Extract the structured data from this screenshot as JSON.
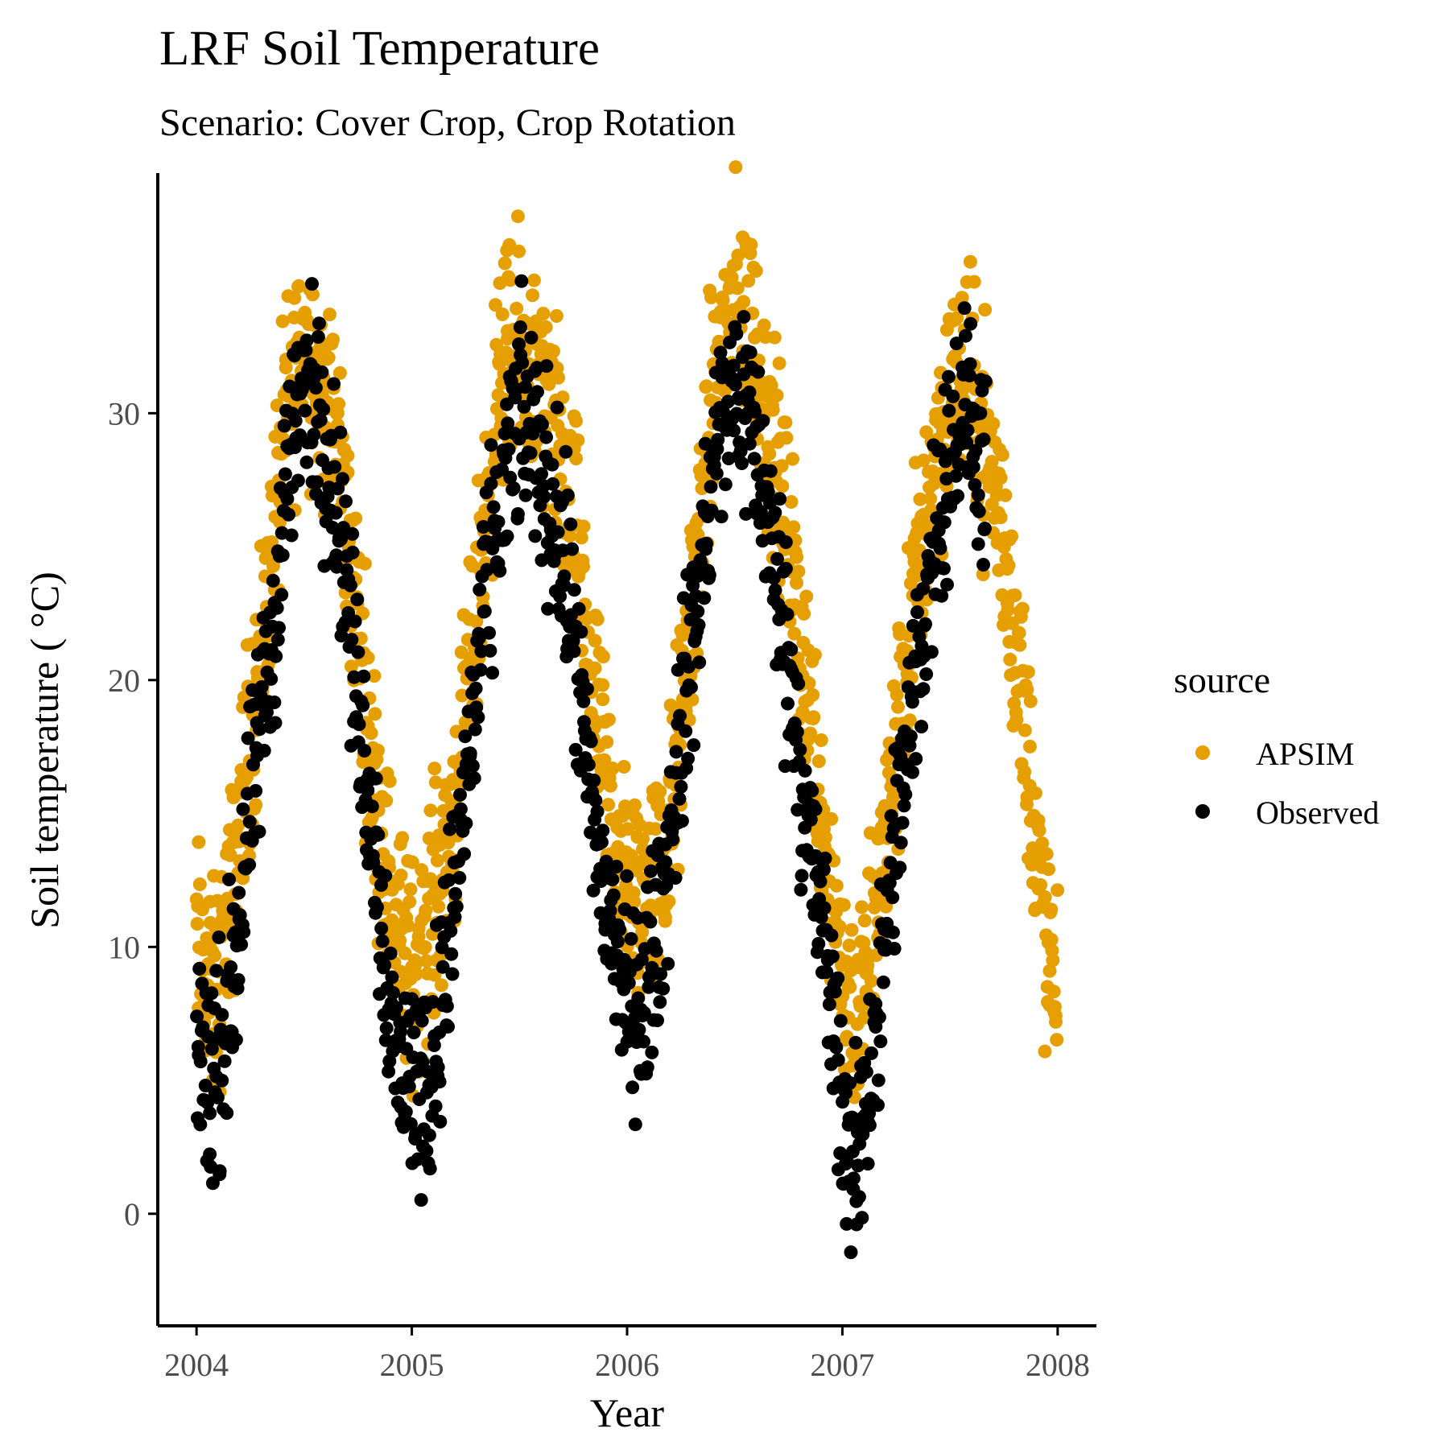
{
  "chart_data": {
    "type": "scatter",
    "title": "LRF Soil Temperature",
    "subtitle": "Scenario: Cover Crop, Crop Rotation",
    "xlabel": "Year",
    "ylabel": "Soil temperature ( °C)",
    "x_ticks": [
      "2004",
      "2005",
      "2006",
      "2007",
      "2008"
    ],
    "y_ticks": [
      0,
      10,
      20,
      30
    ],
    "xlim": [
      2003.82,
      2008.18
    ],
    "ylim": [
      -4.2,
      39
    ],
    "grid": false,
    "legend": {
      "title": "source",
      "position": "right"
    },
    "series": [
      {
        "name": "APSIM",
        "color": "#E69F00",
        "note_pattern": "daily values ~2004.0–2008.0, dense seasonal cycle",
        "anchors": [
          {
            "x": 2004.0,
            "y": 10
          },
          {
            "x": 2004.08,
            "y": 8
          },
          {
            "x": 2004.17,
            "y": 12
          },
          {
            "x": 2004.25,
            "y": 18
          },
          {
            "x": 2004.33,
            "y": 23
          },
          {
            "x": 2004.42,
            "y": 30
          },
          {
            "x": 2004.5,
            "y": 33
          },
          {
            "x": 2004.58,
            "y": 31
          },
          {
            "x": 2004.67,
            "y": 28
          },
          {
            "x": 2004.75,
            "y": 22
          },
          {
            "x": 2004.83,
            "y": 16
          },
          {
            "x": 2004.92,
            "y": 11
          },
          {
            "x": 2005.0,
            "y": 9
          },
          {
            "x": 2005.08,
            "y": 11
          },
          {
            "x": 2005.17,
            "y": 14
          },
          {
            "x": 2005.25,
            "y": 18
          },
          {
            "x": 2005.33,
            "y": 25
          },
          {
            "x": 2005.42,
            "y": 32
          },
          {
            "x": 2005.5,
            "y": 32
          },
          {
            "x": 2005.58,
            "y": 31
          },
          {
            "x": 2005.67,
            "y": 29
          },
          {
            "x": 2005.75,
            "y": 26
          },
          {
            "x": 2005.83,
            "y": 20
          },
          {
            "x": 2005.92,
            "y": 15
          },
          {
            "x": 2006.0,
            "y": 12
          },
          {
            "x": 2006.08,
            "y": 12
          },
          {
            "x": 2006.17,
            "y": 13
          },
          {
            "x": 2006.25,
            "y": 18
          },
          {
            "x": 2006.33,
            "y": 25
          },
          {
            "x": 2006.42,
            "y": 32
          },
          {
            "x": 2006.5,
            "y": 34
          },
          {
            "x": 2006.58,
            "y": 33
          },
          {
            "x": 2006.67,
            "y": 29
          },
          {
            "x": 2006.75,
            "y": 25
          },
          {
            "x": 2006.83,
            "y": 20
          },
          {
            "x": 2006.92,
            "y": 14
          },
          {
            "x": 2007.0,
            "y": 9
          },
          {
            "x": 2007.08,
            "y": 7
          },
          {
            "x": 2007.17,
            "y": 12
          },
          {
            "x": 2007.25,
            "y": 17
          },
          {
            "x": 2007.33,
            "y": 23
          },
          {
            "x": 2007.42,
            "y": 28
          },
          {
            "x": 2007.5,
            "y": 31
          },
          {
            "x": 2007.58,
            "y": 31
          },
          {
            "x": 2007.67,
            "y": 29
          },
          {
            "x": 2007.75,
            "y": 25
          },
          {
            "x": 2007.83,
            "y": 20
          },
          {
            "x": 2007.92,
            "y": 12
          },
          {
            "x": 2008.0,
            "y": 7
          }
        ],
        "spread": 3.2
      },
      {
        "name": "Observed",
        "color": "#000000",
        "anchors": [
          {
            "x": 2004.0,
            "y": 7
          },
          {
            "x": 2004.06,
            "y": 5
          },
          {
            "x": 2004.12,
            "y": 6
          },
          {
            "x": 2004.2,
            "y": 11
          },
          {
            "x": 2004.28,
            "y": 17
          },
          {
            "x": 2004.36,
            "y": 22
          },
          {
            "x": 2004.42,
            "y": 28
          },
          {
            "x": 2004.5,
            "y": 31
          },
          {
            "x": 2004.58,
            "y": 30
          },
          {
            "x": 2004.67,
            "y": 26
          },
          {
            "x": 2004.75,
            "y": 19
          },
          {
            "x": 2004.83,
            "y": 14
          },
          {
            "x": 2004.92,
            "y": 6
          },
          {
            "x": 2005.0,
            "y": 5
          },
          {
            "x": 2005.08,
            "y": 5
          },
          {
            "x": 2005.14,
            "y": 8
          },
          {
            "x": 2005.25,
            "y": 16
          },
          {
            "x": 2005.33,
            "y": 22
          },
          {
            "x": 2005.42,
            "y": 27
          },
          {
            "x": 2005.5,
            "y": 30
          },
          {
            "x": 2005.58,
            "y": 29
          },
          {
            "x": 2005.67,
            "y": 26
          },
          {
            "x": 2005.75,
            "y": 22
          },
          {
            "x": 2005.83,
            "y": 15
          },
          {
            "x": 2006.0,
            "y": 8
          },
          {
            "x": 2006.08,
            "y": 8
          },
          {
            "x": 2006.17,
            "y": 12
          },
          {
            "x": 2006.25,
            "y": 18
          },
          {
            "x": 2006.33,
            "y": 23
          },
          {
            "x": 2006.42,
            "y": 29
          },
          {
            "x": 2006.5,
            "y": 31
          },
          {
            "x": 2006.58,
            "y": 30
          },
          {
            "x": 2006.67,
            "y": 25
          },
          {
            "x": 2006.75,
            "y": 21
          },
          {
            "x": 2006.83,
            "y": 15
          },
          {
            "x": 2006.92,
            "y": 10
          },
          {
            "x": 2007.0,
            "y": 4
          },
          {
            "x": 2007.05,
            "y": 1
          },
          {
            "x": 2007.17,
            "y": 8
          },
          {
            "x": 2007.25,
            "y": 14
          },
          {
            "x": 2007.33,
            "y": 19
          },
          {
            "x": 2007.42,
            "y": 25
          },
          {
            "x": 2007.5,
            "y": 29
          },
          {
            "x": 2007.58,
            "y": 30
          },
          {
            "x": 2007.67,
            "y": 28
          }
        ],
        "spread": 3.0
      }
    ]
  }
}
